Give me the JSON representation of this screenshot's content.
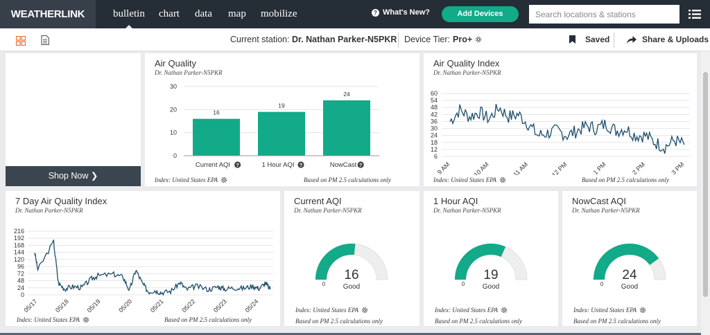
{
  "nav": {
    "logo": "WEATHERLINK",
    "links": [
      "bulletin",
      "chart",
      "data",
      "map",
      "mobilize"
    ],
    "active": "bulletin",
    "whats_new": "What's New?",
    "add_devices": "Add Devices",
    "search_placeholder": "Search locations & stations"
  },
  "subbar": {
    "station_label": "Current station:",
    "station_name": "Dr. Nathan Parker-N5PKR",
    "tier_label": "Device Tier:",
    "tier_value": "Pro+",
    "saved": "Saved",
    "share": "Share & Uploads"
  },
  "ad": {
    "shop_now": "Shop Now ❯"
  },
  "air_quality": {
    "title": "Air Quality",
    "subtitle": "Dr. Nathan Parker-N5PKR",
    "footer_index": "Index: United States EPA",
    "footer_note": "Based on PM 2.5 calculations only"
  },
  "aqi": {
    "title": "Air Quality Index",
    "subtitle": "Dr. Nathan Parker-N5PKR",
    "footer_index": "Index: United States EPA",
    "footer_note": "Based on PM 2.5 calculations only"
  },
  "aqi7": {
    "title": "7 Day Air Quality Index",
    "subtitle": "Dr. Nathan Parker-N5PKR",
    "footer_index": "Index: United States EPA",
    "footer_note": "Based on PM 2.5 calculations only"
  },
  "gauges": [
    {
      "title": "Current AQI",
      "subtitle": "Dr. Nathan Parker-N5PKR",
      "value": "16",
      "min": "0",
      "status": "Good",
      "footer_index": "Index: United States EPA",
      "footer_note": "Based on PM 2.5 calculations only"
    },
    {
      "title": "1 Hour AQI",
      "subtitle": "Dr. Nathan Parker-N5PKR",
      "value": "19",
      "min": "0",
      "status": "Good",
      "footer_index": "Index: United States EPA",
      "footer_note": "Based on PM 2.5 calculations only"
    },
    {
      "title": "NowCast AQI",
      "subtitle": "Dr. Nathan Parker-N5PKR",
      "value": "24",
      "min": "0",
      "status": "Good",
      "footer_index": "Index: United States EPA",
      "footer_note": "Based on PM 2.5 calculations only"
    }
  ],
  "colors": {
    "accent": "#12aa88",
    "line": "#1d4d6b",
    "nav": "#252d36"
  },
  "chart_data": [
    {
      "type": "bar",
      "categories": [
        "Current AQI",
        "1 Hour AQI",
        "NowCast"
      ],
      "values": [
        16,
        19,
        24
      ],
      "ylim": [
        0,
        30
      ],
      "yticks": [
        0,
        10,
        20,
        30
      ]
    },
    {
      "type": "line",
      "x_ticks": [
        "9 AM",
        "10 AM",
        "11 AM",
        "12 PM",
        "1 PM",
        "2 PM",
        "3 PM"
      ],
      "yticks": [
        6,
        12,
        18,
        24,
        30,
        36,
        42,
        48,
        54,
        60
      ],
      "ylim": [
        6,
        60
      ],
      "x": [
        9.0,
        9.25,
        9.5,
        9.75,
        10.0,
        10.25,
        10.5,
        10.75,
        11.0,
        11.25,
        11.5,
        11.75,
        12.0,
        12.25,
        12.5,
        12.75,
        13.0,
        13.25,
        13.5,
        13.75,
        14.0,
        14.25,
        14.5,
        14.75,
        15.0
      ],
      "values": [
        36,
        46,
        40,
        44,
        38,
        48,
        40,
        42,
        34,
        24,
        26,
        28,
        24,
        28,
        32,
        30,
        34,
        28,
        30,
        24,
        24,
        18,
        14,
        20,
        16
      ]
    },
    {
      "type": "line",
      "x_ticks": [
        "05/17",
        "05/18",
        "05/19",
        "05/20",
        "05/21",
        "05/22",
        "05/23",
        "05/24"
      ],
      "yticks": [
        0,
        24,
        48,
        72,
        96,
        120,
        144,
        168,
        192,
        216
      ],
      "ylim": [
        0,
        216
      ],
      "x": [
        0.0,
        0.1,
        0.6,
        0.75,
        0.95,
        1.2,
        1.5,
        1.8,
        2.0,
        2.5,
        2.8,
        3.0,
        3.2,
        3.4,
        3.6,
        3.8,
        4.0,
        4.3,
        4.6,
        4.8,
        5.1,
        5.5,
        5.8,
        6.0,
        6.3,
        6.6,
        6.9,
        7.1,
        7.3,
        7.45
      ],
      "values": [
        145,
        85,
        180,
        40,
        20,
        28,
        25,
        55,
        65,
        70,
        60,
        15,
        85,
        40,
        10,
        15,
        8,
        12,
        42,
        18,
        30,
        18,
        28,
        20,
        24,
        22,
        30,
        22,
        40,
        18
      ]
    }
  ]
}
